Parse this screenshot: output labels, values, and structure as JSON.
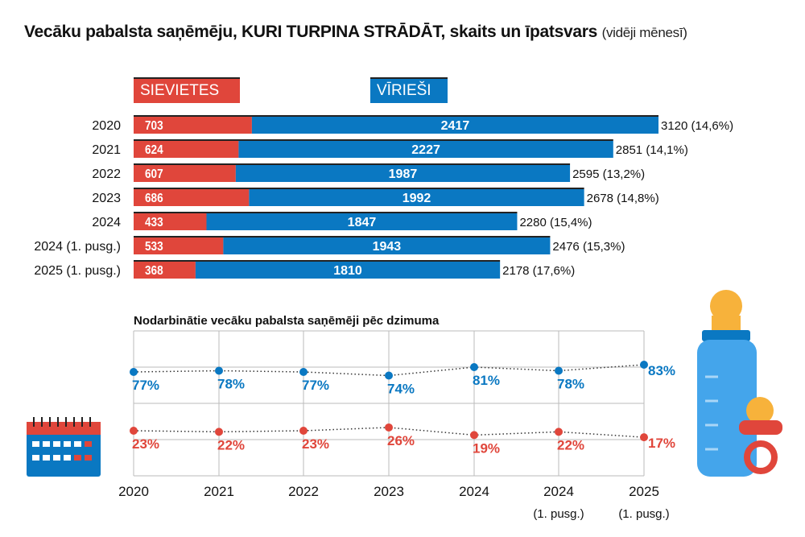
{
  "title": "Vecāku pabalsta saņēmēju, KURI TURPINA STRĀDĀT, skaits un īpatsvars",
  "subtitle": "(vidēji mēnesī)",
  "colors": {
    "women": "#e0463b",
    "men": "#0a78c2"
  },
  "chart_data": [
    {
      "type": "bar",
      "stacked": true,
      "orientation": "horizontal",
      "legend": [
        "SIEVIETES",
        "VĪRIEŠI"
      ],
      "categories": [
        "2020",
        "2021",
        "2022",
        "2023",
        "2024",
        "2024 (1. pusg.)",
        "2025 (1. pusg.)"
      ],
      "series": [
        {
          "name": "SIEVIETES",
          "values": [
            703,
            624,
            607,
            686,
            433,
            533,
            368
          ]
        },
        {
          "name": "VĪRIEŠI",
          "values": [
            2417,
            2227,
            1987,
            1992,
            1847,
            1943,
            1810
          ]
        }
      ],
      "totals": [
        "3120 (14,6%)",
        "2851 (14,1%)",
        "2595 (13,2%)",
        "2678 (14,8%)",
        "2280 (15,4%)",
        "2476 (15,3%)",
        "2178 (17,6%)"
      ]
    },
    {
      "type": "line",
      "title": "Nodarbinātie vecāku pabalsta saņēmēji pēc dzimuma",
      "categories": [
        [
          "2020",
          ""
        ],
        [
          "2021",
          ""
        ],
        [
          "2022",
          ""
        ],
        [
          "2023",
          ""
        ],
        [
          "2024",
          ""
        ],
        [
          "2024",
          "(1. pusg.)"
        ],
        [
          "2025",
          "(1. pusg.)"
        ]
      ],
      "series": [
        {
          "name": "Vīrieši",
          "values": [
            77,
            78,
            77,
            74,
            81,
            78,
            83
          ]
        },
        {
          "name": "Sievietes",
          "values": [
            23,
            22,
            23,
            26,
            19,
            22,
            17
          ]
        }
      ],
      "unit": "%"
    }
  ]
}
